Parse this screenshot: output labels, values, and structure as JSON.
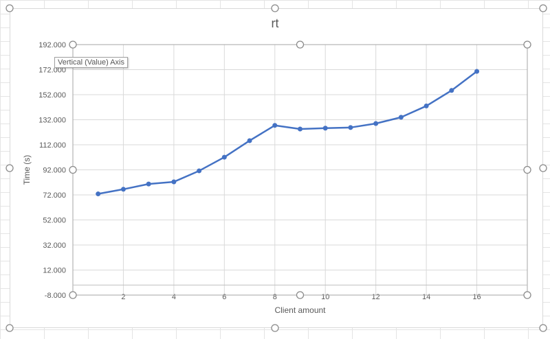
{
  "chart_data": {
    "type": "line",
    "title": "rt",
    "xlabel": "Client amount",
    "ylabel": "Time (s)",
    "xlim": [
      0,
      18
    ],
    "ylim": [
      -8,
      192
    ],
    "x_ticks": [
      "2",
      "4",
      "6",
      "8",
      "10",
      "12",
      "14",
      "16"
    ],
    "y_ticks": [
      "-8.000",
      "12.000",
      "32.000",
      "52.000",
      "72.000",
      "92.000",
      "112.000",
      "132.000",
      "152.000",
      "172.000",
      "192.000"
    ],
    "grid": true,
    "series": [
      {
        "x": [
          1,
          2,
          3,
          4,
          5,
          6,
          7,
          8,
          9,
          10,
          11,
          12,
          13,
          14,
          15,
          16
        ],
        "y": [
          72.8,
          76.5,
          80.7,
          82.4,
          91.2,
          102.1,
          115.3,
          127.5,
          124.6,
          125.3,
          125.8,
          129.0,
          134.0,
          143.0,
          155.4,
          170.6
        ],
        "color": "#4472c4"
      }
    ]
  },
  "tooltip": "Vertical (Value) Axis"
}
